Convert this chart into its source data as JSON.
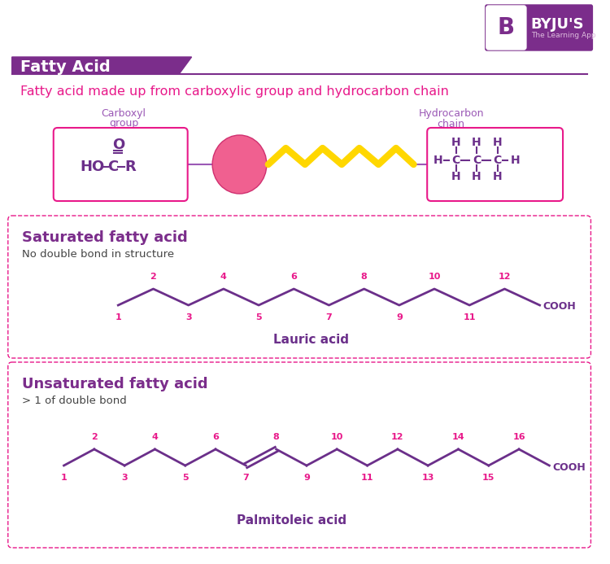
{
  "title": "Fatty Acid",
  "subtitle": "Fatty acid made up from carboxylic group and hydrocarbon chain",
  "purple": "#7B2D8B",
  "magenta": "#E8198A",
  "yellow": "#FFD700",
  "dark_purple": "#6B2F8A",
  "mid_purple": "#9B59B6",
  "background": "#FFFFFF",
  "lauric_label": "Lauric acid",
  "palmitoleic_label": "Palmitoleic acid",
  "sat_title": "Saturated fatty acid",
  "sat_sub": "No double bond in structure",
  "unsat_title": "Unsaturated fatty acid",
  "unsat_sub": "> 1 of double bond",
  "carboxyl_label1": "Carboxyl",
  "carboxyl_label2": "group",
  "hydro_label1": "Hydrocarbon",
  "hydro_label2": "chain"
}
